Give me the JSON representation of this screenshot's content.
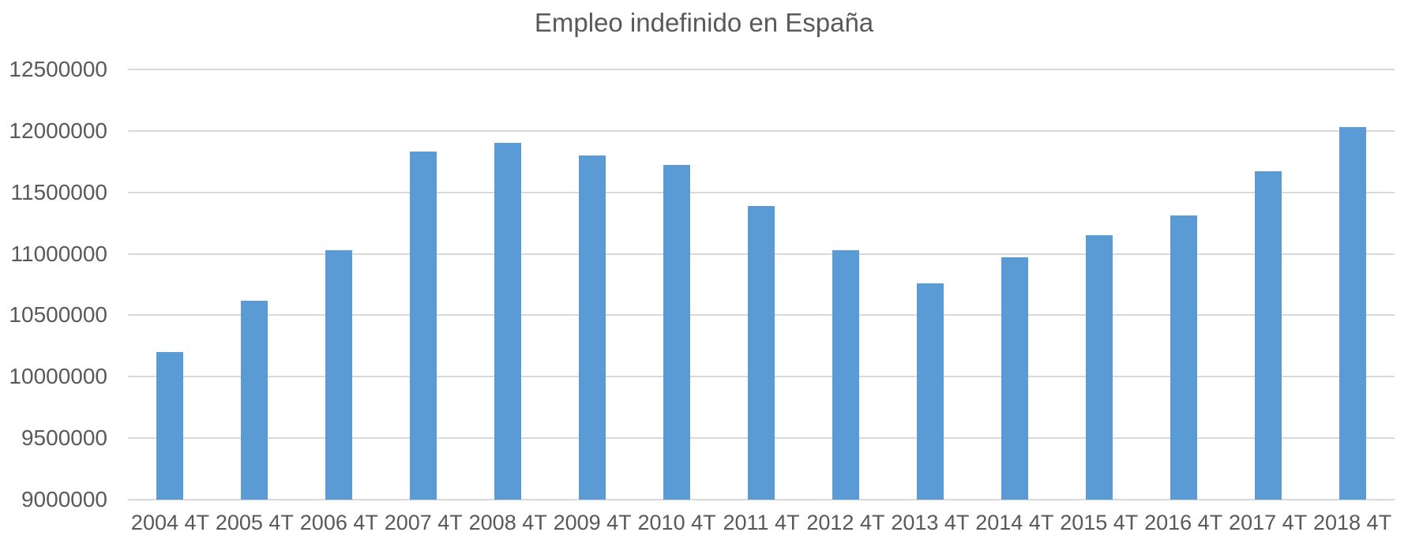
{
  "chart_data": {
    "type": "bar",
    "title": "Empleo indefinido en España",
    "categories": [
      "2004 4T",
      "2005 4T",
      "2006 4T",
      "2007 4T",
      "2008 4T",
      "2009 4T",
      "2010 4T",
      "2011 4T",
      "2012 4T",
      "2013 4T",
      "2014 4T",
      "2015 4T",
      "2016 4T",
      "2017 4T",
      "2018 4T"
    ],
    "values": [
      10200000,
      10620000,
      11030000,
      11830000,
      11900000,
      11800000,
      11720000,
      11390000,
      11030000,
      10760000,
      10970000,
      11150000,
      11310000,
      11670000,
      12030000
    ],
    "ylim": [
      9000000,
      12500000
    ],
    "yticks": [
      9000000,
      9500000,
      10000000,
      10500000,
      11000000,
      11500000,
      12000000,
      12500000
    ],
    "grid": true,
    "legend": "none",
    "colors": {
      "bar": "#5B9BD5",
      "gridline": "#D9D9D9",
      "text": "#595959",
      "background": "#FFFFFF"
    }
  }
}
